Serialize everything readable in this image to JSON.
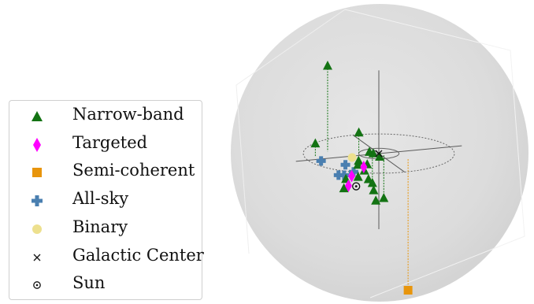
{
  "chart_data": {
    "type": "scatter",
    "projection": "3d",
    "legend_position": "left",
    "legend": [
      {
        "label": "Narrow-band",
        "marker": "triangle",
        "color": "#137313"
      },
      {
        "label": "Targeted",
        "marker": "diamond",
        "color": "#ff00ff"
      },
      {
        "label": "Semi-coherent",
        "marker": "square",
        "color": "#e8950c"
      },
      {
        "label": "All-sky",
        "marker": "plus",
        "color": "#4a7fb0"
      },
      {
        "label": "Binary",
        "marker": "circle",
        "color": "#ede08e"
      },
      {
        "label": "Galactic Center",
        "marker": "x",
        "color": "#111111"
      },
      {
        "label": "Sun",
        "marker": "sun",
        "color": "#111111"
      }
    ],
    "series": [
      {
        "name": "Narrow-band",
        "points": [
          {
            "x": -0.18,
            "y": 0.1,
            "z": 0.34,
            "stem": true
          },
          {
            "x": -0.25,
            "y": 0.05,
            "z": 0.05,
            "stem": true
          },
          {
            "x": -0.07,
            "y": 0.04,
            "z": 0.08,
            "stem": true
          },
          {
            "x": -0.04,
            "y": 0.0,
            "z": 0.01
          },
          {
            "x": -0.02,
            "y": 0.01,
            "z": 0.0
          },
          {
            "x": 0.0,
            "y": -0.01,
            "z": -0.01
          },
          {
            "x": -0.06,
            "y": -0.03,
            "z": -0.03
          },
          {
            "x": -0.1,
            "y": -0.04,
            "z": -0.01
          },
          {
            "x": -0.11,
            "y": -0.06,
            "z": -0.02
          },
          {
            "x": -0.09,
            "y": -0.08,
            "z": -0.04
          },
          {
            "x": -0.12,
            "y": -0.09,
            "z": -0.06
          },
          {
            "x": -0.08,
            "y": -0.1,
            "z": -0.07
          },
          {
            "x": -0.15,
            "y": -0.03,
            "z": -0.08
          },
          {
            "x": -0.02,
            "y": 0.02,
            "z": -0.12,
            "stem": true
          },
          {
            "x": -0.04,
            "y": -0.05,
            "z": -0.13
          },
          {
            "x": -0.18,
            "y": -0.09,
            "z": -0.1
          },
          {
            "x": 0.01,
            "y": -0.03,
            "z": -0.17,
            "stem": true
          },
          {
            "x": -0.02,
            "y": -0.02,
            "z": -0.18
          }
        ]
      },
      {
        "name": "Targeted",
        "points": [
          {
            "x": -0.1,
            "y": -0.1,
            "z": -0.02
          },
          {
            "x": -0.14,
            "y": -0.07,
            "z": -0.06
          },
          {
            "x": -0.15,
            "y": -0.06,
            "z": -0.1
          }
        ]
      },
      {
        "name": "Semi-coherent",
        "points": [
          {
            "x": 0.08,
            "y": -0.12,
            "z": -0.52,
            "stem": true
          }
        ]
      },
      {
        "name": "All-sky",
        "points": [
          {
            "x": -0.28,
            "y": -0.1,
            "z": 0.02
          },
          {
            "x": -0.15,
            "y": -0.12,
            "z": -0.03
          },
          {
            "x": -0.17,
            "y": -0.08,
            "z": -0.01
          },
          {
            "x": -0.19,
            "y": -0.12,
            "z": -0.04
          },
          {
            "x": -0.21,
            "y": -0.11,
            "z": -0.04
          }
        ]
      },
      {
        "name": "Binary",
        "points": [
          {
            "x": -0.12,
            "y": -0.02,
            "z": 0.0
          }
        ]
      },
      {
        "name": "Galactic Center",
        "points": [
          {
            "x": 0.0,
            "y": 0.0,
            "z": 0.0
          }
        ]
      },
      {
        "name": "Sun",
        "points": [
          {
            "x": -0.15,
            "y": -0.15,
            "z": -0.08
          }
        ]
      }
    ],
    "scene": {
      "background_sphere": true,
      "galactic_plane_circles": [
        0.3,
        0.08
      ],
      "axes": true
    }
  }
}
